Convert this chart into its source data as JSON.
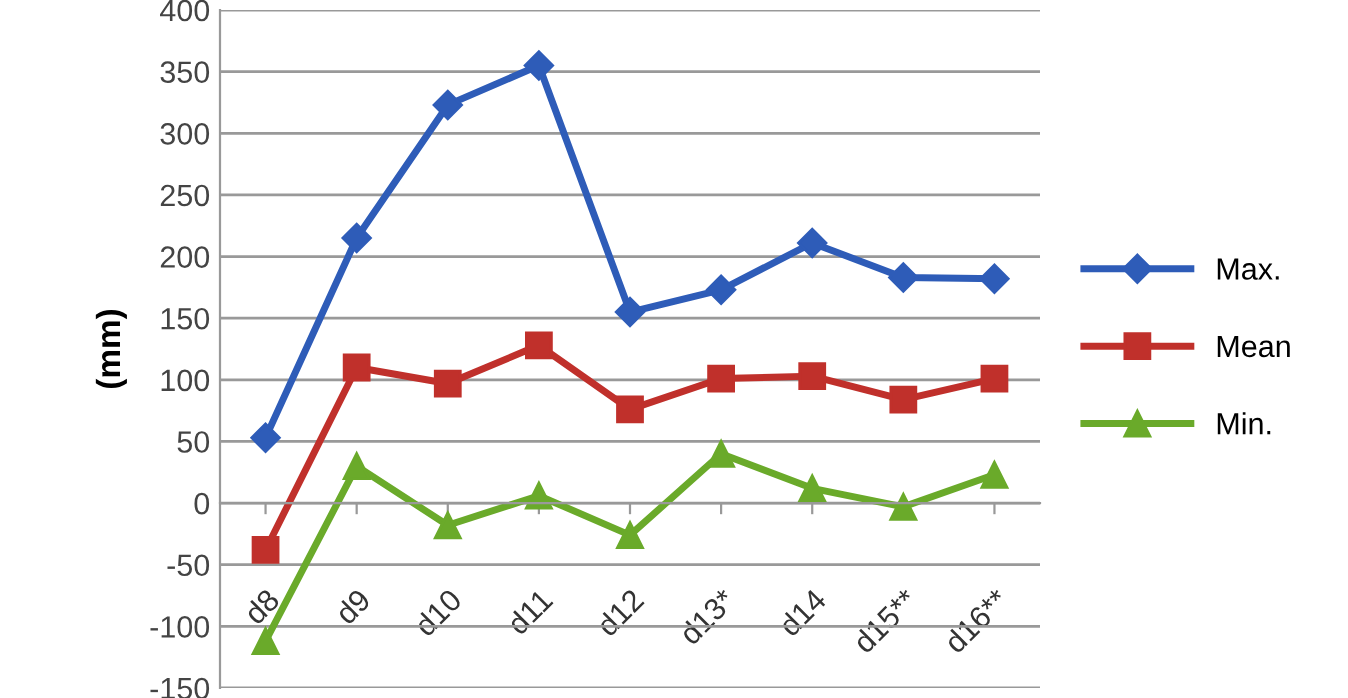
{
  "chart_data": {
    "type": "line",
    "ylabel": "(mm)",
    "categories": [
      "d8",
      "d9",
      "d10",
      "d11",
      "d12",
      "d13*",
      "d14",
      "d15**",
      "d16**"
    ],
    "series": [
      {
        "name": "Max.",
        "color": "#2e5cb8",
        "marker": "diamond",
        "values": [
          53,
          215,
          323,
          355,
          155,
          173,
          211,
          183,
          182
        ]
      },
      {
        "name": "Mean",
        "color": "#c0302b",
        "marker": "square",
        "values": [
          -38,
          110,
          97,
          128,
          76,
          101,
          103,
          84,
          101
        ]
      },
      {
        "name": "Min.",
        "color": "#6aaa2a",
        "marker": "triangle",
        "values": [
          -112,
          30,
          -18,
          6,
          -26,
          40,
          12,
          -3,
          23
        ]
      }
    ],
    "ylim": [
      -150,
      400
    ],
    "yticks": [
      -150,
      -100,
      -50,
      0,
      50,
      100,
      150,
      200,
      250,
      300,
      350,
      400
    ],
    "grid": "y",
    "legend": "right",
    "line_style": "solid"
  }
}
